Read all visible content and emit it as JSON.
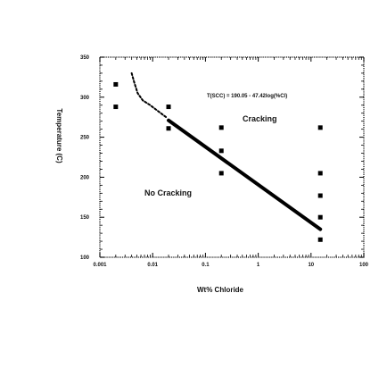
{
  "chart_data": {
    "type": "scatter",
    "xlabel": "Wt% Chloride",
    "ylabel": "Temperature (C)",
    "x_scale": "log",
    "xlim": [
      0.001,
      100
    ],
    "ylim": [
      100,
      350
    ],
    "x_ticks": [
      "0.001",
      "0.01",
      "0.1",
      "1",
      "10",
      "100"
    ],
    "x_tick_values": [
      0.001,
      0.01,
      0.1,
      1,
      10,
      100
    ],
    "y_ticks": [
      "100",
      "150",
      "200",
      "250",
      "300",
      "350"
    ],
    "y_tick_values": [
      100,
      150,
      200,
      250,
      300,
      350
    ],
    "grid": false,
    "points": [
      {
        "x": 0.002,
        "y": 316
      },
      {
        "x": 0.002,
        "y": 288
      },
      {
        "x": 0.02,
        "y": 288
      },
      {
        "x": 0.02,
        "y": 261
      },
      {
        "x": 0.2,
        "y": 262
      },
      {
        "x": 0.2,
        "y": 233
      },
      {
        "x": 0.2,
        "y": 205
      },
      {
        "x": 15,
        "y": 262
      },
      {
        "x": 15,
        "y": 205
      },
      {
        "x": 15,
        "y": 177
      },
      {
        "x": 15,
        "y": 150
      },
      {
        "x": 15,
        "y": 122
      }
    ],
    "fit_line": {
      "x": [
        0.02,
        15
      ],
      "y": [
        271,
        135
      ]
    },
    "dashed_curve": {
      "x": [
        0.004,
        0.0045,
        0.0052,
        0.0065,
        0.009,
        0.013,
        0.018
      ],
      "y": [
        330,
        318,
        305,
        296,
        290,
        282,
        275
      ]
    },
    "equation": "T(SCC) = 190.05 - 47.42log(%Cl)",
    "regions": [
      {
        "label": "Cracking",
        "x": 0.9,
        "y": 264
      },
      {
        "label": "No Cracking",
        "x": 0.012,
        "y": 177
      }
    ]
  }
}
